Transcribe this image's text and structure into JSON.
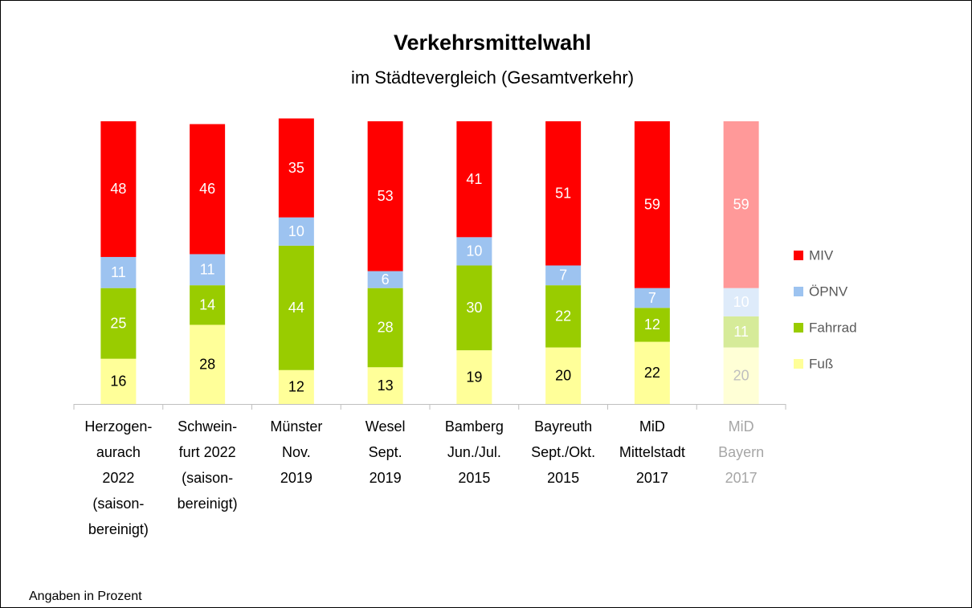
{
  "chart_data": {
    "type": "stacked_bar",
    "title": "Verkehrsmittelwahl",
    "subtitle": "im Städtevergleich (Gesamtverkehr)",
    "footnote": "Angaben in Prozent",
    "categories": [
      [
        "Herzogen-",
        "aurach",
        "2022",
        "(saison-",
        "bereinigt)"
      ],
      [
        "Schwein-",
        "furt 2022",
        "(saison-",
        "bereinigt)"
      ],
      [
        "Münster",
        "Nov.",
        "2019"
      ],
      [
        "Wesel",
        "Sept.",
        "2019"
      ],
      [
        "Bamberg",
        "Jun./Jul.",
        "2015"
      ],
      [
        "Bayreuth",
        "Sept./Okt.",
        "2015"
      ],
      [
        "MiD",
        "Mittelstadt",
        "2017"
      ],
      [
        "MiD",
        "Bayern",
        "2017"
      ]
    ],
    "category_colors": [
      "#000000",
      "#000000",
      "#000000",
      "#000000",
      "#000000",
      "#000000",
      "#000000",
      "#a6a6a6"
    ],
    "series": [
      {
        "name": "Fuß",
        "color": "#ffff99",
        "values": [
          16,
          28,
          12,
          13,
          19,
          20,
          22,
          20
        ],
        "colors": [
          "#ffff99",
          "#ffff99",
          "#ffff99",
          "#ffff99",
          "#ffff99",
          "#ffff99",
          "#ffff99",
          "#ffffd6"
        ],
        "label_colors": [
          "#000000",
          "#000000",
          "#000000",
          "#000000",
          "#000000",
          "#000000",
          "#000000",
          "#bfbfbf"
        ]
      },
      {
        "name": "Fahrrad",
        "color": "#99cc00",
        "values": [
          25,
          14,
          44,
          28,
          30,
          22,
          12,
          11
        ],
        "colors": [
          "#99cc00",
          "#99cc00",
          "#99cc00",
          "#99cc00",
          "#99cc00",
          "#99cc00",
          "#99cc00",
          "#d6eb99"
        ],
        "label_colors": [
          "#ffffff",
          "#ffffff",
          "#ffffff",
          "#ffffff",
          "#ffffff",
          "#ffffff",
          "#ffffff",
          "#ffffff"
        ]
      },
      {
        "name": "ÖPNV",
        "color": "#9dc3f0",
        "values": [
          11,
          11,
          10,
          6,
          10,
          7,
          7,
          10
        ],
        "colors": [
          "#9dc3f0",
          "#9dc3f0",
          "#9dc3f0",
          "#9dc3f0",
          "#9dc3f0",
          "#9dc3f0",
          "#9dc3f0",
          "#deebfa"
        ],
        "label_colors": [
          "#ffffff",
          "#ffffff",
          "#ffffff",
          "#ffffff",
          "#ffffff",
          "#ffffff",
          "#ffffff",
          "#ffffff"
        ]
      },
      {
        "name": "MIV",
        "color": "#ff0000",
        "values": [
          48,
          46,
          35,
          53,
          41,
          51,
          59,
          59
        ],
        "colors": [
          "#ff0000",
          "#ff0000",
          "#ff0000",
          "#ff0000",
          "#ff0000",
          "#ff0000",
          "#ff0000",
          "#ff9999"
        ],
        "label_colors": [
          "#ffffff",
          "#ffffff",
          "#ffffff",
          "#ffffff",
          "#ffffff",
          "#ffffff",
          "#ffffff",
          "#ffffff"
        ]
      }
    ],
    "ylim": [
      0,
      100
    ],
    "legend": "right"
  }
}
